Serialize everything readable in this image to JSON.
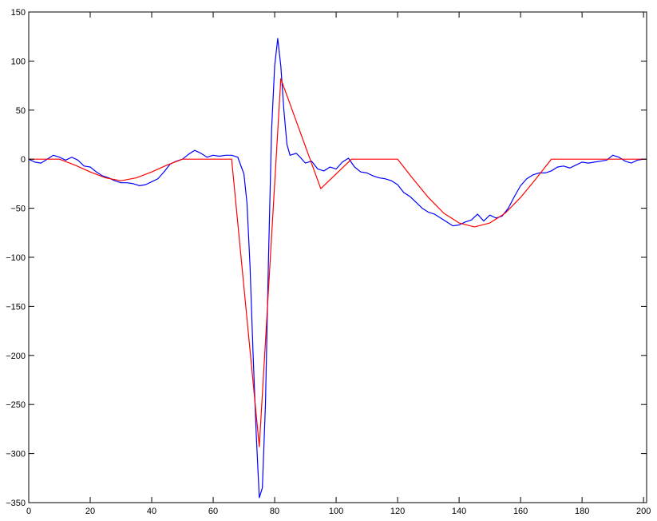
{
  "chart_data": {
    "type": "line",
    "title": "",
    "xlabel": "",
    "ylabel": "",
    "xlim": [
      0,
      201
    ],
    "ylim": [
      -350,
      150
    ],
    "grid": false,
    "x_ticks": [
      0,
      20,
      40,
      60,
      80,
      100,
      120,
      140,
      160,
      180,
      200
    ],
    "y_ticks": [
      -350,
      -300,
      -250,
      -200,
      -150,
      -100,
      -50,
      0,
      50,
      100,
      150
    ],
    "series": [
      {
        "color": "#0000ff",
        "x": [
          0,
          2,
          4,
          6,
          8,
          10,
          12,
          14,
          16,
          18,
          20,
          22,
          24,
          26,
          28,
          30,
          32,
          34,
          36,
          38,
          40,
          42,
          44,
          46,
          48,
          50,
          52,
          54,
          56,
          58,
          60,
          62,
          64,
          66,
          68,
          70,
          71,
          72,
          73,
          74,
          75,
          76,
          77,
          78,
          79,
          80,
          81,
          82,
          83,
          84,
          85,
          86,
          87,
          88,
          90,
          92,
          94,
          96,
          98,
          100,
          102,
          104,
          106,
          108,
          110,
          112,
          114,
          116,
          118,
          120,
          122,
          124,
          126,
          128,
          130,
          132,
          134,
          136,
          138,
          140,
          142,
          144,
          146,
          148,
          150,
          152,
          154,
          156,
          158,
          160,
          162,
          164,
          166,
          168,
          170,
          172,
          174,
          176,
          178,
          180,
          182,
          184,
          186,
          188,
          190,
          192,
          194,
          196,
          198,
          200,
          201
        ],
        "y": [
          0,
          -3,
          -4,
          0,
          4,
          2,
          -1,
          2,
          -1,
          -7,
          -8,
          -13,
          -17,
          -19,
          -22,
          -24,
          -24,
          -25,
          -27,
          -26,
          -23,
          -20,
          -13,
          -5,
          -2,
          0,
          5,
          9,
          6,
          2,
          4,
          3,
          4,
          4,
          2,
          -15,
          -45,
          -110,
          -200,
          -280,
          -345,
          -335,
          -250,
          -100,
          30,
          95,
          123,
          95,
          50,
          15,
          4,
          5,
          6,
          3,
          -4,
          -2,
          -10,
          -12,
          -8,
          -10,
          -3,
          1,
          -8,
          -13,
          -14,
          -17,
          -19,
          -20,
          -22,
          -26,
          -34,
          -38,
          -44,
          -50,
          -54,
          -56,
          -60,
          -64,
          -68,
          -67,
          -64,
          -62,
          -56,
          -63,
          -57,
          -60,
          -58,
          -50,
          -38,
          -27,
          -20,
          -16,
          -14,
          -14,
          -12,
          -8,
          -7,
          -9,
          -6,
          -3,
          -4,
          -3,
          -2,
          -1,
          4,
          2,
          -2,
          -4,
          -1,
          0,
          0
        ]
      },
      {
        "color": "#ff0000",
        "x": [
          0,
          10,
          15,
          20,
          25,
          30,
          35,
          40,
          45,
          50,
          66,
          75,
          82,
          95,
          105,
          120,
          125,
          130,
          135,
          140,
          145,
          150,
          155,
          160,
          165,
          170,
          201
        ],
        "y": [
          0,
          0,
          -6,
          -13,
          -19,
          -22,
          -19,
          -13,
          -6,
          0,
          0,
          -293,
          82,
          -30,
          0,
          0,
          -20,
          -39,
          -55,
          -65,
          -69,
          -65,
          -55,
          -39,
          -20,
          0,
          0
        ]
      }
    ]
  }
}
